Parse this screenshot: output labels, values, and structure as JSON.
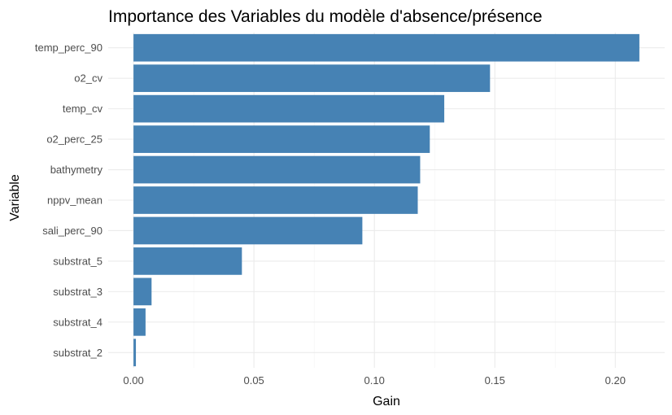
{
  "chart_data": {
    "type": "bar",
    "orientation": "horizontal",
    "title": "Importance des Variables du modèle d'absence/présence",
    "xlabel": "Gain",
    "ylabel": "Variable",
    "categories": [
      "temp_perc_90",
      "o2_cv",
      "temp_cv",
      "o2_perc_25",
      "bathymetry",
      "nppv_mean",
      "sali_perc_90",
      "substrat_5",
      "substrat_3",
      "substrat_4",
      "substrat_2"
    ],
    "values": [
      0.21,
      0.148,
      0.129,
      0.123,
      0.119,
      0.118,
      0.095,
      0.045,
      0.0075,
      0.005,
      0.001
    ],
    "xlim": [
      -0.0105,
      0.2205
    ],
    "xticks": [
      0.0,
      0.05,
      0.1,
      0.15,
      0.2
    ],
    "xtick_labels": [
      "0.00",
      "0.05",
      "0.10",
      "0.15",
      "0.20"
    ],
    "bar_color": "#4682b4",
    "grid": true,
    "legend": "none"
  }
}
